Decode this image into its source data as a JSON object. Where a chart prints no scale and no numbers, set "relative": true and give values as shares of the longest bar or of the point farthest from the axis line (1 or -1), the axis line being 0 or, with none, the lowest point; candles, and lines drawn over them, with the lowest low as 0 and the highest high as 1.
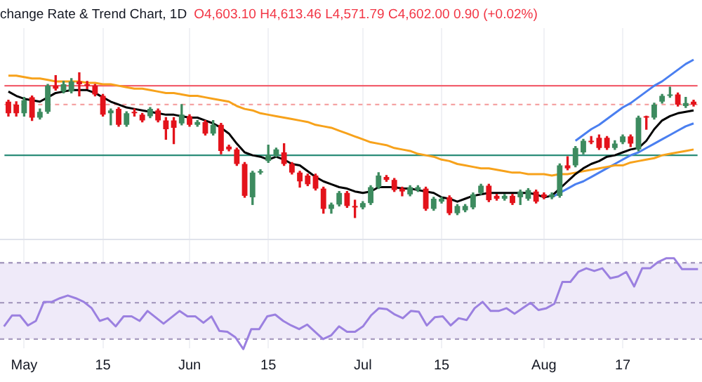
{
  "chart_data": [
    {
      "type": "candlestick",
      "title": "change Rate & Trend Chart, 1D",
      "subtitle": "O4,603.10 H4,613.46 L4,571.79 C4,602.00 0.90 (+0.02%)",
      "relative": true,
      "grid": "x",
      "tick_labels": "x",
      "categories": [
        null,
        null,
        "May",
        null,
        null,
        null,
        null,
        null,
        null,
        null,
        null,
        null,
        "15",
        null,
        null,
        null,
        null,
        null,
        null,
        null,
        null,
        null,
        null,
        "Jun",
        null,
        null,
        null,
        null,
        null,
        null,
        null,
        null,
        null,
        "15",
        null,
        null,
        null,
        null,
        null,
        null,
        null,
        null,
        null,
        null,
        null,
        "Jul",
        null,
        null,
        null,
        null,
        null,
        null,
        null,
        null,
        null,
        "15",
        null,
        null,
        null,
        null,
        null,
        null,
        null,
        null,
        null,
        null,
        null,
        null,
        "Aug",
        null,
        null,
        null,
        null,
        null,
        null,
        null,
        null,
        null,
        "17",
        null,
        null,
        null,
        null,
        null,
        null,
        null,
        null,
        null
      ],
      "ohlc": [
        [
          0.8,
          0.81,
          0.7,
          0.72
        ],
        [
          0.78,
          0.8,
          0.7,
          0.72
        ],
        [
          0.72,
          0.83,
          0.7,
          0.81
        ],
        [
          0.83,
          0.84,
          0.67,
          0.69
        ],
        [
          0.69,
          0.75,
          0.68,
          0.73
        ],
        [
          0.73,
          0.92,
          0.72,
          0.91
        ],
        [
          0.91,
          0.98,
          0.88,
          0.89
        ],
        [
          0.87,
          0.94,
          0.86,
          0.92
        ],
        [
          0.87,
          0.96,
          0.86,
          0.94
        ],
        [
          0.94,
          1,
          0.84,
          0.92
        ],
        [
          0.92,
          0.94,
          0.89,
          0.91
        ],
        [
          0.91,
          0.92,
          0.84,
          0.85
        ],
        [
          0.84,
          0.85,
          0.7,
          0.71
        ],
        [
          0.72,
          0.75,
          0.64,
          0.74
        ],
        [
          0.75,
          0.76,
          0.63,
          0.64
        ],
        [
          0.64,
          0.73,
          0.63,
          0.72
        ],
        [
          0.73,
          0.75,
          0.7,
          0.72
        ],
        [
          0.71,
          0.72,
          0.66,
          0.67
        ],
        [
          0.7,
          0.76,
          0.69,
          0.75
        ],
        [
          0.74,
          0.75,
          0.66,
          0.67
        ],
        [
          0.67,
          0.69,
          0.54,
          0.61
        ],
        [
          0.67,
          0.69,
          0.51,
          0.62
        ],
        [
          0.65,
          0.78,
          0.64,
          0.71
        ],
        [
          0.7,
          0.71,
          0.63,
          0.64
        ],
        [
          0.64,
          0.67,
          0.63,
          0.66
        ],
        [
          0.66,
          0.67,
          0.57,
          0.58
        ],
        [
          0.58,
          0.67,
          0.57,
          0.64
        ],
        [
          0.64,
          0.65,
          0.44,
          0.46
        ],
        [
          0.49,
          0.5,
          0.46,
          0.47
        ],
        [
          0.47,
          0.48,
          0.36,
          0.37
        ],
        [
          0.37,
          0.38,
          0.14,
          0.15
        ],
        [
          0.14,
          0.32,
          0.09,
          0.31
        ],
        [
          0.31,
          0.33,
          0.3,
          0.32
        ],
        [
          0.39,
          0.5,
          0.38,
          0.43
        ],
        [
          0.43,
          0.48,
          0.42,
          0.47
        ],
        [
          0.45,
          0.51,
          0.36,
          0.37
        ],
        [
          0.37,
          0.38,
          0.3,
          0.31
        ],
        [
          0.31,
          0.32,
          0.21,
          0.25
        ],
        [
          0.29,
          0.3,
          0.22,
          0.23
        ],
        [
          0.29,
          0.3,
          0.19,
          0.2
        ],
        [
          0.2,
          0.21,
          0.03,
          0.06
        ],
        [
          0.06,
          0.1,
          0.03,
          0.09
        ],
        [
          0.09,
          0.18,
          0.08,
          0.17
        ],
        [
          0.17,
          0.18,
          0.07,
          0.08
        ],
        [
          0.08,
          0.12,
          0,
          0.07
        ],
        [
          0.07,
          0.11,
          0.06,
          0.1
        ],
        [
          0.1,
          0.22,
          0.09,
          0.21
        ],
        [
          0.21,
          0.31,
          0.2,
          0.29
        ],
        [
          0.28,
          0.29,
          0.25,
          0.26
        ],
        [
          0.26,
          0.27,
          0.18,
          0.19
        ],
        [
          0.2,
          0.21,
          0.15,
          0.18
        ],
        [
          0.16,
          0.22,
          0.15,
          0.21
        ],
        [
          0.19,
          0.22,
          0.18,
          0.21
        ],
        [
          0.2,
          0.21,
          0.05,
          0.06
        ],
        [
          0.06,
          0.14,
          0.05,
          0.13
        ],
        [
          0.11,
          0.14,
          0.1,
          0.13
        ],
        [
          0.14,
          0.15,
          0.02,
          0.03
        ],
        [
          0.03,
          0.09,
          0.02,
          0.08
        ],
        [
          0.05,
          0.09,
          0.04,
          0.08
        ],
        [
          0.07,
          0.17,
          0.06,
          0.16
        ],
        [
          0.17,
          0.23,
          0.16,
          0.22
        ],
        [
          0.22,
          0.23,
          0.11,
          0.12
        ],
        [
          0.15,
          0.16,
          0.12,
          0.13
        ],
        [
          0.13,
          0.16,
          0.12,
          0.15
        ],
        [
          0.15,
          0.16,
          0.09,
          0.1
        ],
        [
          0.14,
          0.19,
          0.09,
          0.18
        ],
        [
          0.13,
          0.2,
          0.12,
          0.19
        ],
        [
          0.18,
          0.19,
          0.1,
          0.11
        ],
        [
          0.16,
          0.17,
          0.13,
          0.14
        ],
        [
          0.14,
          0.17,
          0.13,
          0.16
        ],
        [
          0.15,
          0.37,
          0.14,
          0.36
        ],
        [
          0.36,
          0.42,
          0.33,
          0.34
        ],
        [
          0.36,
          0.49,
          0.35,
          0.48
        ],
        [
          0.45,
          0.54,
          0.44,
          0.53
        ],
        [
          0.53,
          0.56,
          0.51,
          0.52
        ],
        [
          0.55,
          0.57,
          0.47,
          0.48
        ],
        [
          0.55,
          0.56,
          0.47,
          0.48
        ],
        [
          0.48,
          0.53,
          0.47,
          0.51
        ],
        [
          0.52,
          0.57,
          0.51,
          0.56
        ],
        [
          0.56,
          0.57,
          0.49,
          0.51
        ],
        [
          0.47,
          0.7,
          0.46,
          0.69
        ],
        [
          0.7,
          0.7,
          0.61,
          0.69
        ],
        [
          0.69,
          0.79,
          0.68,
          0.78
        ],
        [
          0.8,
          0.85,
          0.79,
          0.84
        ],
        [
          0.84,
          0.9,
          0.83,
          0.85
        ],
        [
          0.85,
          0.86,
          0.77,
          0.78
        ],
        [
          0.77,
          0.83,
          0.76,
          0.79
        ],
        [
          0.8,
          0.81,
          0.77,
          0.78
        ]
      ],
      "colors": [
        "#e3131b",
        "#e3131b",
        "#3d8b5f",
        "#e3131b",
        "#3d8b5f",
        "#3d8b5f",
        "#e3131b",
        "#3d8b5f",
        "#3d8b5f",
        "#e3131b",
        "#e3131b",
        "#e3131b",
        "#e3131b",
        "#3d8b5f",
        "#e3131b",
        "#3d8b5f",
        "#e3131b",
        "#e3131b",
        "#3d8b5f",
        "#e3131b",
        "#e3131b",
        "#e3131b",
        "#3d8b5f",
        "#e3131b",
        "#3d8b5f",
        "#e3131b",
        "#3d8b5f",
        "#e3131b",
        "#e3131b",
        "#e3131b",
        "#e3131b",
        "#3d8b5f",
        "#3d8b5f",
        "#3d8b5f",
        "#3d8b5f",
        "#e3131b",
        "#e3131b",
        "#e3131b",
        "#e3131b",
        "#e3131b",
        "#e3131b",
        "#3d8b5f",
        "#3d8b5f",
        "#e3131b",
        "#e3131b",
        "#3d8b5f",
        "#3d8b5f",
        "#3d8b5f",
        "#e3131b",
        "#e3131b",
        "#e3131b",
        "#3d8b5f",
        "#3d8b5f",
        "#e3131b",
        "#3d8b5f",
        "#3d8b5f",
        "#e3131b",
        "#3d8b5f",
        "#3d8b5f",
        "#3d8b5f",
        "#3d8b5f",
        "#e3131b",
        "#e3131b",
        "#3d8b5f",
        "#e3131b",
        "#3d8b5f",
        "#3d8b5f",
        "#e3131b",
        "#e3131b",
        "#3d8b5f",
        "#3d8b5f",
        "#e3131b",
        "#3d8b5f",
        "#3d8b5f",
        "#e3131b",
        "#e3131b",
        "#e3131b",
        "#3d8b5f",
        "#3d8b5f",
        "#e3131b",
        "#3d8b5f",
        "#e3131b",
        "#3d8b5f",
        "#3d8b5f",
        "#3d8b5f",
        "#e3131b",
        "#3d8b5f",
        "#e3131b"
      ],
      "series": [
        {
          "type": "line",
          "color": "#000000",
          "values": [
            0.87,
            0.84,
            0.82,
            0.81,
            0.8,
            0.83,
            0.86,
            0.87,
            0.88,
            0.88,
            0.88,
            0.86,
            0.83,
            0.8,
            0.78,
            0.76,
            0.75,
            0.74,
            0.73,
            0.72,
            0.71,
            0.71,
            0.7,
            0.69,
            0.69,
            0.67,
            0.65,
            0.62,
            0.58,
            0.51,
            0.45,
            0.43,
            0.42,
            0.4,
            0.42,
            0.4,
            0.37,
            0.36,
            0.32,
            0.28,
            0.25,
            0.23,
            0.21,
            0.2,
            0.18,
            0.17,
            0.18,
            0.21,
            0.21,
            0.21,
            0.2,
            0.2,
            0.19,
            0.18,
            0.17,
            0.14,
            0.13,
            0.11,
            0.13,
            0.15,
            0.16,
            0.17,
            0.17,
            0.17,
            0.17,
            0.17,
            0.17,
            0.16,
            0.14,
            0.15,
            0.2,
            0.25,
            0.3,
            0.34,
            0.37,
            0.39,
            0.42,
            0.43,
            0.45,
            0.47,
            0.48,
            0.53,
            0.61,
            0.67,
            0.7,
            0.72,
            0.73,
            0.74
          ]
        },
        {
          "type": "line",
          "color": "#f7a21b",
          "values": [
            0.98,
            0.98,
            0.97,
            0.96,
            0.96,
            0.95,
            0.94,
            0.94,
            0.94,
            0.94,
            0.93,
            0.93,
            0.92,
            0.92,
            0.91,
            0.9,
            0.89,
            0.89,
            0.88,
            0.87,
            0.86,
            0.86,
            0.85,
            0.84,
            0.84,
            0.83,
            0.82,
            0.81,
            0.8,
            0.77,
            0.75,
            0.74,
            0.72,
            0.71,
            0.7,
            0.69,
            0.68,
            0.67,
            0.66,
            0.64,
            0.63,
            0.62,
            0.6,
            0.58,
            0.56,
            0.54,
            0.52,
            0.51,
            0.5,
            0.48,
            0.47,
            0.46,
            0.44,
            0.43,
            0.42,
            0.4,
            0.39,
            0.37,
            0.36,
            0.35,
            0.34,
            0.34,
            0.33,
            0.32,
            0.31,
            0.31,
            0.3,
            0.3,
            0.3,
            0.29,
            0.3,
            0.3,
            0.31,
            0.32,
            0.33,
            0.34,
            0.35,
            0.36,
            0.36,
            0.38,
            0.39,
            0.4,
            0.41,
            0.43,
            0.44,
            0.45,
            0.46,
            0.47
          ]
        },
        {
          "type": "line",
          "color": "#4a7ff0",
          "values": [
            null,
            null,
            null,
            null,
            null,
            null,
            null,
            null,
            null,
            null,
            null,
            null,
            null,
            null,
            null,
            null,
            null,
            null,
            null,
            null,
            null,
            null,
            null,
            null,
            null,
            null,
            null,
            null,
            null,
            null,
            null,
            null,
            null,
            null,
            null,
            null,
            null,
            null,
            null,
            null,
            null,
            null,
            null,
            null,
            null,
            null,
            null,
            null,
            null,
            null,
            null,
            null,
            null,
            null,
            null,
            null,
            null,
            null,
            null,
            null,
            null,
            null,
            null,
            null,
            null,
            null,
            null,
            null,
            null,
            null,
            null,
            null,
            0.53,
            0.57,
            0.61,
            0.64,
            0.68,
            0.72,
            0.76,
            0.79,
            0.83,
            0.87,
            0.91,
            0.94,
            0.98,
            1.02,
            1.06,
            1.09
          ]
        },
        {
          "type": "line",
          "color": "#4a7ff0",
          "values": [
            null,
            null,
            null,
            null,
            null,
            null,
            null,
            null,
            null,
            null,
            null,
            null,
            null,
            null,
            null,
            null,
            null,
            null,
            null,
            null,
            null,
            null,
            null,
            null,
            null,
            null,
            null,
            null,
            null,
            null,
            null,
            null,
            null,
            null,
            null,
            null,
            null,
            null,
            null,
            null,
            null,
            null,
            null,
            null,
            null,
            null,
            null,
            null,
            null,
            null,
            null,
            null,
            null,
            null,
            null,
            null,
            null,
            null,
            null,
            null,
            null,
            null,
            null,
            null,
            null,
            null,
            null,
            null,
            null,
            0.14,
            0.17,
            0.2,
            0.23,
            0.25,
            0.28,
            0.31,
            0.34,
            0.37,
            0.4,
            0.43,
            0.45,
            0.48,
            0.51,
            0.54,
            0.57,
            0.6,
            0.63,
            0.65
          ]
        }
      ],
      "ref_lines": [
        {
          "axis": "y",
          "value": 0.91,
          "color": "#f2606e"
        },
        {
          "axis": "y",
          "value": 0.78,
          "color": "#f5a3a3",
          "line_style": "dashed"
        },
        {
          "axis": "y",
          "value": 0.43,
          "color": "#2a8c78"
        }
      ]
    },
    {
      "type": "line",
      "relative": true,
      "tick_labels": false,
      "categories": [
        null,
        null,
        null,
        null,
        null,
        null,
        null,
        null,
        null,
        null,
        null,
        null,
        null,
        null,
        null,
        null,
        null,
        null,
        null,
        null,
        null,
        null,
        null,
        null,
        null,
        null,
        null,
        null,
        null,
        null,
        null,
        null,
        null,
        null,
        null,
        null,
        null,
        null,
        null,
        null,
        null,
        null,
        null,
        null,
        null,
        null,
        null,
        null,
        null,
        null,
        null,
        null,
        null,
        null,
        null,
        null,
        null,
        null,
        null,
        null,
        null,
        null,
        null,
        null,
        null,
        null,
        null,
        null,
        null,
        null,
        null,
        null,
        null,
        null,
        null,
        null,
        null,
        null,
        null,
        null,
        null,
        null,
        null,
        null,
        null,
        null,
        null,
        null
      ],
      "series": [
        {
          "color": "#9b80e0",
          "values": [
            0.25,
            0.37,
            0.37,
            0.26,
            0.31,
            0.52,
            0.52,
            0.56,
            0.59,
            0.56,
            0.52,
            0.45,
            0.31,
            0.34,
            0.25,
            0.36,
            0.36,
            0.31,
            0.42,
            0.35,
            0.28,
            0.35,
            0.42,
            0.36,
            0.36,
            0.29,
            0.36,
            0.2,
            0.19,
            0.13,
            0,
            0.22,
            0.22,
            0.36,
            0.38,
            0.31,
            0.26,
            0.22,
            0.27,
            0.19,
            0.11,
            0.15,
            0.25,
            0.19,
            0.19,
            0.25,
            0.37,
            0.45,
            0.44,
            0.38,
            0.34,
            0.42,
            0.41,
            0.26,
            0.35,
            0.36,
            0.26,
            0.34,
            0.32,
            0.45,
            0.52,
            0.42,
            0.42,
            0.45,
            0.39,
            0.45,
            0.51,
            0.43,
            0.45,
            0.5,
            0.74,
            0.74,
            0.85,
            0.89,
            0.86,
            0.89,
            0.78,
            0.8,
            0.85,
            0.69,
            0.89,
            0.89,
            0.96,
            1,
            1,
            0.88,
            0.88,
            0.88
          ]
        }
      ],
      "bands": [
        {
          "axis": "y",
          "from": 0.11,
          "to": 0.95,
          "color": "#efeaf9"
        }
      ],
      "ref_lines": [
        {
          "axis": "y",
          "value": 0.95,
          "color": "#a89cc0",
          "line_style": "dashed"
        },
        {
          "axis": "y",
          "value": 0.51,
          "color": "#a89cc0",
          "line_style": "dashed"
        },
        {
          "axis": "y",
          "value": 0.11,
          "color": "#a89cc0",
          "line_style": "dashed"
        }
      ]
    }
  ]
}
